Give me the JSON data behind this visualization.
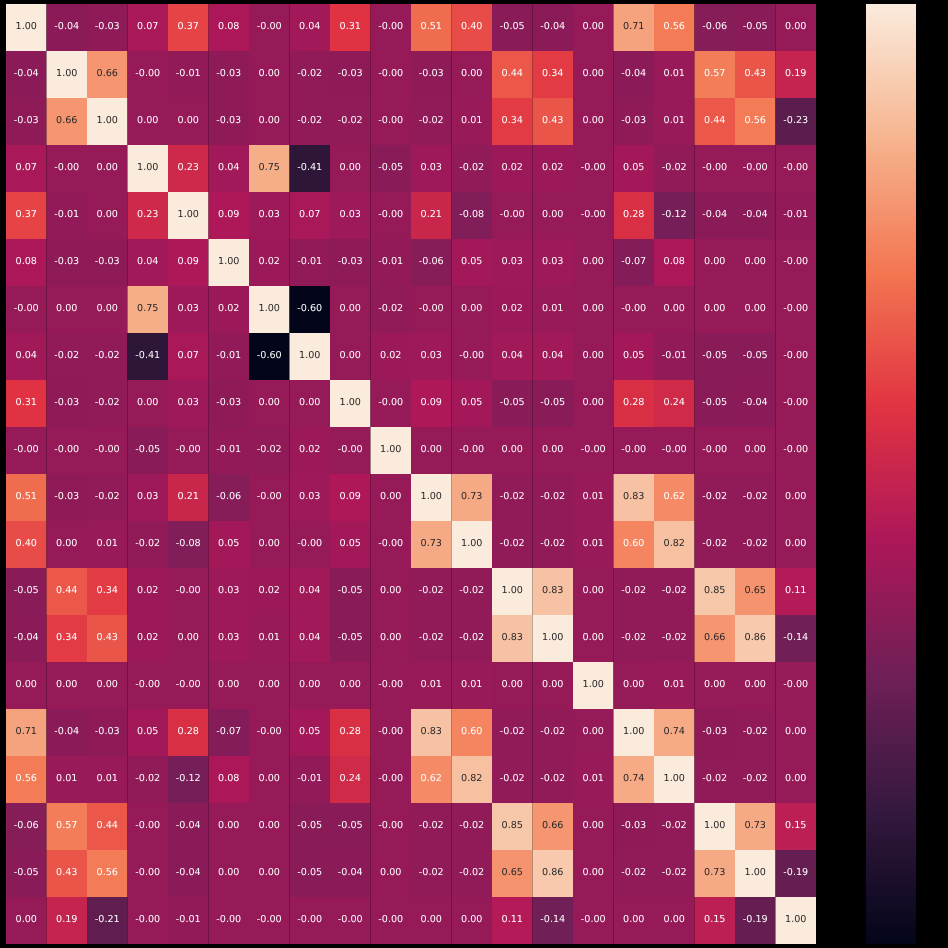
{
  "chart_data": {
    "type": "heatmap",
    "tick_labels": false,
    "categories": [
      null,
      null,
      null,
      null,
      null,
      null,
      null,
      null,
      null,
      null,
      null,
      null,
      null,
      null,
      null,
      null,
      null,
      null,
      null,
      null
    ],
    "y_categories": [
      null,
      null,
      null,
      null,
      null,
      null,
      null,
      null,
      null,
      null,
      null,
      null,
      null,
      null,
      null,
      null,
      null,
      null,
      null,
      null
    ],
    "cells": [
      [
        1,
        -0.04,
        -0.03,
        0.07,
        0.37,
        0.08,
        0,
        0.04,
        0.31,
        0,
        0.51,
        0.4,
        -0.05,
        -0.04,
        0,
        0.71,
        0.56,
        -0.06,
        -0.05,
        0
      ],
      [
        -0.04,
        1,
        0.66,
        0,
        -0.01,
        -0.03,
        0,
        -0.02,
        -0.03,
        0,
        -0.03,
        0,
        0.44,
        0.34,
        0,
        -0.04,
        0.01,
        0.57,
        0.43,
        0.19
      ],
      [
        -0.03,
        0.66,
        1,
        0,
        0,
        -0.03,
        0,
        -0.02,
        -0.02,
        0,
        -0.02,
        0.01,
        0.34,
        0.43,
        0,
        -0.03,
        0.01,
        0.44,
        0.56,
        -0.23
      ],
      [
        0.07,
        0,
        0,
        1,
        0.23,
        0.04,
        0.75,
        -0.41,
        0,
        -0.05,
        0.03,
        -0.02,
        0.02,
        0.02,
        0,
        0.05,
        -0.02,
        0,
        0,
        0
      ],
      [
        0.37,
        -0.01,
        0,
        0.23,
        1,
        0.09,
        0.03,
        0.07,
        0.03,
        0,
        0.21,
        -0.08,
        0,
        0,
        0,
        0.28,
        -0.12,
        -0.04,
        -0.04,
        -0.01
      ],
      [
        0.08,
        -0.03,
        -0.03,
        0.04,
        0.09,
        1,
        0.02,
        -0.01,
        -0.03,
        -0.01,
        -0.06,
        0.05,
        0.03,
        0.03,
        0,
        -0.07,
        0.08,
        0,
        0,
        0
      ],
      [
        0,
        0,
        0,
        0.75,
        0.03,
        0.02,
        1,
        -0.6,
        0,
        -0.02,
        0,
        0,
        0.02,
        0.01,
        0,
        0,
        0,
        0,
        0,
        0
      ],
      [
        0.04,
        -0.02,
        -0.02,
        -0.41,
        0.07,
        -0.01,
        -0.6,
        1,
        0,
        0.02,
        0.03,
        0,
        0.04,
        0.04,
        0,
        0.05,
        -0.01,
        -0.05,
        -0.05,
        0
      ],
      [
        0.31,
        -0.03,
        -0.02,
        0,
        0.03,
        -0.03,
        0,
        0,
        1,
        0,
        0.09,
        0.05,
        -0.05,
        -0.05,
        0,
        0.28,
        0.24,
        -0.05,
        -0.04,
        0
      ],
      [
        0,
        0,
        0,
        -0.05,
        0,
        -0.01,
        -0.02,
        0.02,
        0,
        1,
        0,
        0,
        0,
        0,
        0,
        0,
        0,
        0,
        0,
        0
      ],
      [
        0.51,
        -0.03,
        -0.02,
        0.03,
        0.21,
        -0.06,
        0,
        0.03,
        0.09,
        0,
        1,
        0.73,
        -0.02,
        -0.02,
        0.01,
        0.83,
        0.62,
        -0.02,
        -0.02,
        0
      ],
      [
        0.4,
        0,
        0.01,
        -0.02,
        -0.08,
        0.05,
        0,
        0,
        0.05,
        0,
        0.73,
        1,
        -0.02,
        -0.02,
        0.01,
        0.6,
        0.82,
        -0.02,
        -0.02,
        0
      ],
      [
        -0.05,
        0.44,
        0.34,
        0.02,
        0,
        0.03,
        0.02,
        0.04,
        -0.05,
        0,
        -0.02,
        -0.02,
        1,
        0.83,
        0,
        -0.02,
        -0.02,
        0.85,
        0.65,
        0.11
      ],
      [
        -0.04,
        0.34,
        0.43,
        0.02,
        0,
        0.03,
        0.01,
        0.04,
        -0.05,
        0,
        -0.02,
        -0.02,
        0.83,
        1,
        0,
        -0.02,
        -0.02,
        0.66,
        0.86,
        -0.14
      ],
      [
        0,
        0,
        0,
        0,
        0,
        0,
        0,
        0,
        0,
        0,
        0.01,
        0.01,
        0,
        0,
        1,
        0,
        0.01,
        0,
        0,
        0
      ],
      [
        0.71,
        -0.04,
        -0.03,
        0.05,
        0.28,
        -0.07,
        0,
        0.05,
        0.28,
        0,
        0.83,
        0.6,
        -0.02,
        -0.02,
        0,
        1,
        0.74,
        -0.03,
        -0.02,
        0
      ],
      [
        0.56,
        0.01,
        0.01,
        -0.02,
        -0.12,
        0.08,
        0,
        -0.01,
        0.24,
        0,
        0.62,
        0.82,
        -0.02,
        -0.02,
        0.01,
        0.74,
        1,
        -0.02,
        -0.02,
        0
      ],
      [
        -0.06,
        0.57,
        0.44,
        0,
        -0.04,
        0,
        0,
        -0.05,
        -0.05,
        0,
        -0.02,
        -0.02,
        0.85,
        0.66,
        0,
        -0.03,
        -0.02,
        1,
        0.73,
        0.15
      ],
      [
        -0.05,
        0.43,
        0.56,
        0,
        -0.04,
        0,
        0,
        -0.05,
        -0.04,
        0,
        -0.02,
        -0.02,
        0.65,
        0.86,
        0,
        -0.02,
        -0.02,
        0.73,
        1,
        -0.19
      ],
      [
        0,
        0.19,
        -0.21,
        0,
        -0.01,
        0,
        0,
        0,
        0,
        0,
        0,
        0,
        0.11,
        -0.14,
        0,
        0,
        0,
        0.15,
        -0.19,
        1
      ]
    ],
    "cell_labels": [
      [
        "1.00",
        "-0.04",
        "-0.03",
        "0.07",
        "0.37",
        "0.08",
        "-0.00",
        "0.04",
        "0.31",
        "-0.00",
        "0.51",
        "0.40",
        "-0.05",
        "-0.04",
        "0.00",
        "0.71",
        "0.56",
        "-0.06",
        "-0.05",
        "0.00"
      ],
      [
        "-0.04",
        "1.00",
        "0.66",
        "-0.00",
        "-0.01",
        "-0.03",
        "0.00",
        "-0.02",
        "-0.03",
        "-0.00",
        "-0.03",
        "0.00",
        "0.44",
        "0.34",
        "0.00",
        "-0.04",
        "0.01",
        "0.57",
        "0.43",
        "0.19"
      ],
      [
        "-0.03",
        "0.66",
        "1.00",
        "0.00",
        "0.00",
        "-0.03",
        "0.00",
        "-0.02",
        "-0.02",
        "-0.00",
        "-0.02",
        "0.01",
        "0.34",
        "0.43",
        "0.00",
        "-0.03",
        "0.01",
        "0.44",
        "0.56",
        "-0.23"
      ],
      [
        "0.07",
        "-0.00",
        "0.00",
        "1.00",
        "0.23",
        "0.04",
        "0.75",
        "-0.41",
        "0.00",
        "-0.05",
        "0.03",
        "-0.02",
        "0.02",
        "0.02",
        "-0.00",
        "0.05",
        "-0.02",
        "-0.00",
        "-0.00",
        "-0.00"
      ],
      [
        "0.37",
        "-0.01",
        "0.00",
        "0.23",
        "1.00",
        "0.09",
        "0.03",
        "0.07",
        "0.03",
        "-0.00",
        "0.21",
        "-0.08",
        "-0.00",
        "0.00",
        "-0.00",
        "0.28",
        "-0.12",
        "-0.04",
        "-0.04",
        "-0.01"
      ],
      [
        "0.08",
        "-0.03",
        "-0.03",
        "0.04",
        "0.09",
        "1.00",
        "0.02",
        "-0.01",
        "-0.03",
        "-0.01",
        "-0.06",
        "0.05",
        "0.03",
        "0.03",
        "0.00",
        "-0.07",
        "0.08",
        "0.00",
        "0.00",
        "-0.00"
      ],
      [
        "-0.00",
        "0.00",
        "0.00",
        "0.75",
        "0.03",
        "0.02",
        "1.00",
        "-0.60",
        "0.00",
        "-0.02",
        "-0.00",
        "0.00",
        "0.02",
        "0.01",
        "0.00",
        "-0.00",
        "0.00",
        "0.00",
        "0.00",
        "-0.00"
      ],
      [
        "0.04",
        "-0.02",
        "-0.02",
        "-0.41",
        "0.07",
        "-0.01",
        "-0.60",
        "1.00",
        "0.00",
        "0.02",
        "0.03",
        "-0.00",
        "0.04",
        "0.04",
        "0.00",
        "0.05",
        "-0.01",
        "-0.05",
        "-0.05",
        "-0.00"
      ],
      [
        "0.31",
        "-0.03",
        "-0.02",
        "0.00",
        "0.03",
        "-0.03",
        "0.00",
        "0.00",
        "1.00",
        "-0.00",
        "0.09",
        "0.05",
        "-0.05",
        "-0.05",
        "0.00",
        "0.28",
        "0.24",
        "-0.05",
        "-0.04",
        "-0.00"
      ],
      [
        "-0.00",
        "-0.00",
        "-0.00",
        "-0.05",
        "-0.00",
        "-0.01",
        "-0.02",
        "0.02",
        "-0.00",
        "1.00",
        "0.00",
        "-0.00",
        "0.00",
        "0.00",
        "-0.00",
        "-0.00",
        "-0.00",
        "-0.00",
        "0.00",
        "-0.00"
      ],
      [
        "0.51",
        "-0.03",
        "-0.02",
        "0.03",
        "0.21",
        "-0.06",
        "-0.00",
        "0.03",
        "0.09",
        "0.00",
        "1.00",
        "0.73",
        "-0.02",
        "-0.02",
        "0.01",
        "0.83",
        "0.62",
        "-0.02",
        "-0.02",
        "0.00"
      ],
      [
        "0.40",
        "0.00",
        "0.01",
        "-0.02",
        "-0.08",
        "0.05",
        "0.00",
        "-0.00",
        "0.05",
        "-0.00",
        "0.73",
        "1.00",
        "-0.02",
        "-0.02",
        "0.01",
        "0.60",
        "0.82",
        "-0.02",
        "-0.02",
        "0.00"
      ],
      [
        "-0.05",
        "0.44",
        "0.34",
        "0.02",
        "-0.00",
        "0.03",
        "0.02",
        "0.04",
        "-0.05",
        "0.00",
        "-0.02",
        "-0.02",
        "1.00",
        "0.83",
        "0.00",
        "-0.02",
        "-0.02",
        "0.85",
        "0.65",
        "0.11"
      ],
      [
        "-0.04",
        "0.34",
        "0.43",
        "0.02",
        "0.00",
        "0.03",
        "0.01",
        "0.04",
        "-0.05",
        "0.00",
        "-0.02",
        "-0.02",
        "0.83",
        "1.00",
        "0.00",
        "-0.02",
        "-0.02",
        "0.66",
        "0.86",
        "-0.14"
      ],
      [
        "0.00",
        "0.00",
        "0.00",
        "-0.00",
        "-0.00",
        "0.00",
        "0.00",
        "0.00",
        "0.00",
        "-0.00",
        "0.01",
        "0.01",
        "0.00",
        "0.00",
        "1.00",
        "0.00",
        "0.01",
        "0.00",
        "0.00",
        "-0.00"
      ],
      [
        "0.71",
        "-0.04",
        "-0.03",
        "0.05",
        "0.28",
        "-0.07",
        "-0.00",
        "0.05",
        "0.28",
        "-0.00",
        "0.83",
        "0.60",
        "-0.02",
        "-0.02",
        "0.00",
        "1.00",
        "0.74",
        "-0.03",
        "-0.02",
        "0.00"
      ],
      [
        "0.56",
        "0.01",
        "0.01",
        "-0.02",
        "-0.12",
        "0.08",
        "0.00",
        "-0.01",
        "0.24",
        "-0.00",
        "0.62",
        "0.82",
        "-0.02",
        "-0.02",
        "0.01",
        "0.74",
        "1.00",
        "-0.02",
        "-0.02",
        "0.00"
      ],
      [
        "-0.06",
        "0.57",
        "0.44",
        "-0.00",
        "-0.04",
        "0.00",
        "0.00",
        "-0.05",
        "-0.05",
        "-0.00",
        "-0.02",
        "-0.02",
        "0.85",
        "0.66",
        "0.00",
        "-0.03",
        "-0.02",
        "1.00",
        "0.73",
        "0.15"
      ],
      [
        "-0.05",
        "0.43",
        "0.56",
        "-0.00",
        "-0.04",
        "0.00",
        "0.00",
        "-0.05",
        "-0.04",
        "0.00",
        "-0.02",
        "-0.02",
        "0.65",
        "0.86",
        "0.00",
        "-0.02",
        "-0.02",
        "0.73",
        "1.00",
        "-0.19"
      ],
      [
        "0.00",
        "0.19",
        "-0.21",
        "-0.00",
        "-0.01",
        "-0.00",
        "-0.00",
        "-0.00",
        "-0.00",
        "-0.00",
        "0.00",
        "0.00",
        "0.11",
        "-0.14",
        "-0.00",
        "0.00",
        "0.00",
        "0.15",
        "-0.19",
        "1.00"
      ]
    ]
  }
}
